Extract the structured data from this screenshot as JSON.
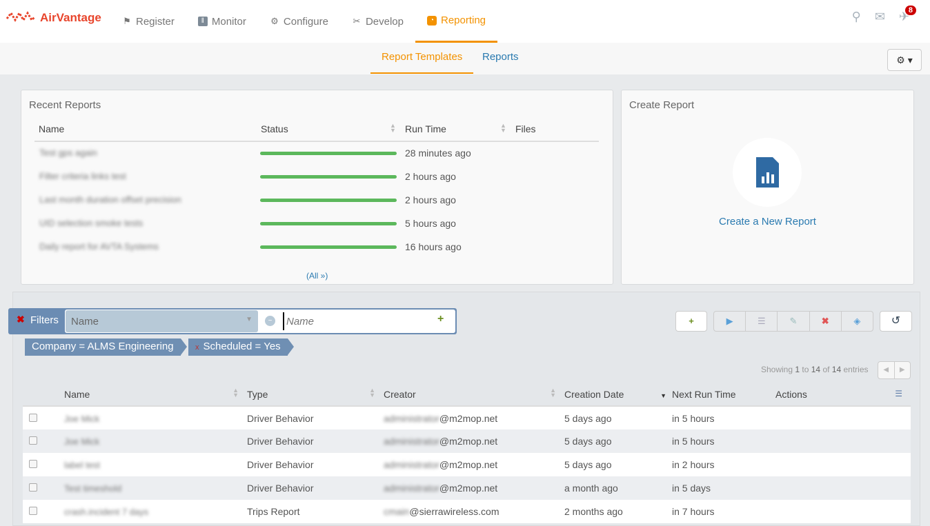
{
  "app": {
    "logo": "AirVantage",
    "notification_count": "8"
  },
  "nav": [
    {
      "label": "Register",
      "icon": "flag-icon"
    },
    {
      "label": "Monitor",
      "icon": "sliders-icon"
    },
    {
      "label": "Configure",
      "icon": "gear-icon"
    },
    {
      "label": "Develop",
      "icon": "tools-icon"
    },
    {
      "label": "Reporting",
      "icon": "report-icon",
      "active": true
    }
  ],
  "subtabs": [
    {
      "label": "Report Templates",
      "active": true
    },
    {
      "label": "Reports"
    }
  ],
  "recent": {
    "title": "Recent Reports",
    "headers": [
      "Name",
      "Status",
      "Run Time",
      "Files"
    ],
    "rows": [
      {
        "name": "Test gps again",
        "progress": 100,
        "time": "28 minutes ago"
      },
      {
        "name": "Filter criteria links test",
        "progress": 100,
        "time": "2 hours ago"
      },
      {
        "name": "Last month duration offset precision",
        "progress": 100,
        "time": "2 hours ago"
      },
      {
        "name": "UID selection smoke tests",
        "progress": 100,
        "time": "5 hours ago"
      },
      {
        "name": "Daily report for AVTA Systems",
        "progress": 100,
        "time": "16 hours ago"
      }
    ],
    "all_link": "(All »)"
  },
  "create": {
    "title": "Create Report",
    "link": "Create a New Report"
  },
  "filters": {
    "label": "Filters",
    "field": "Name",
    "placeholder": "Name",
    "chips": [
      "Company = ALMS Engineering",
      "Scheduled = Yes"
    ]
  },
  "paging": {
    "pre": "Showing ",
    "from": "1",
    "mid1": " to ",
    "to": "14",
    "mid2": " of ",
    "total": "14",
    "post": " entries"
  },
  "table": {
    "headers": [
      "Name",
      "Type",
      "Creator",
      "Creation Date",
      "Next Run Time",
      "Actions"
    ],
    "rows": [
      {
        "name": "Joe Mick",
        "type": "Driver Behavior",
        "creator_hidden": "administrator",
        "creator": "@m2mop.net",
        "created": "5 days ago",
        "next": "in 5 hours"
      },
      {
        "name": "Joe Mick",
        "type": "Driver Behavior",
        "creator_hidden": "administrator",
        "creator": "@m2mop.net",
        "created": "5 days ago",
        "next": "in 5 hours"
      },
      {
        "name": "label test",
        "type": "Driver Behavior",
        "creator_hidden": "administrator",
        "creator": "@m2mop.net",
        "created": "5 days ago",
        "next": "in 2 hours"
      },
      {
        "name": "Test timeshold",
        "type": "Driver Behavior",
        "creator_hidden": "administrator",
        "creator": "@m2mop.net",
        "created": "a month ago",
        "next": "in 5 days"
      },
      {
        "name": "crash.incident 7 days",
        "type": "Trips Report",
        "creator_hidden": "cmain",
        "creator": "@sierrawireless.com",
        "created": "2 months ago",
        "next": "in 7 hours"
      }
    ]
  },
  "colors": {
    "accent": "#f39200",
    "link": "#2a7ab0",
    "brand": "#e8452c",
    "progress": "#5cb85c",
    "filter": "#6b8cb3"
  }
}
